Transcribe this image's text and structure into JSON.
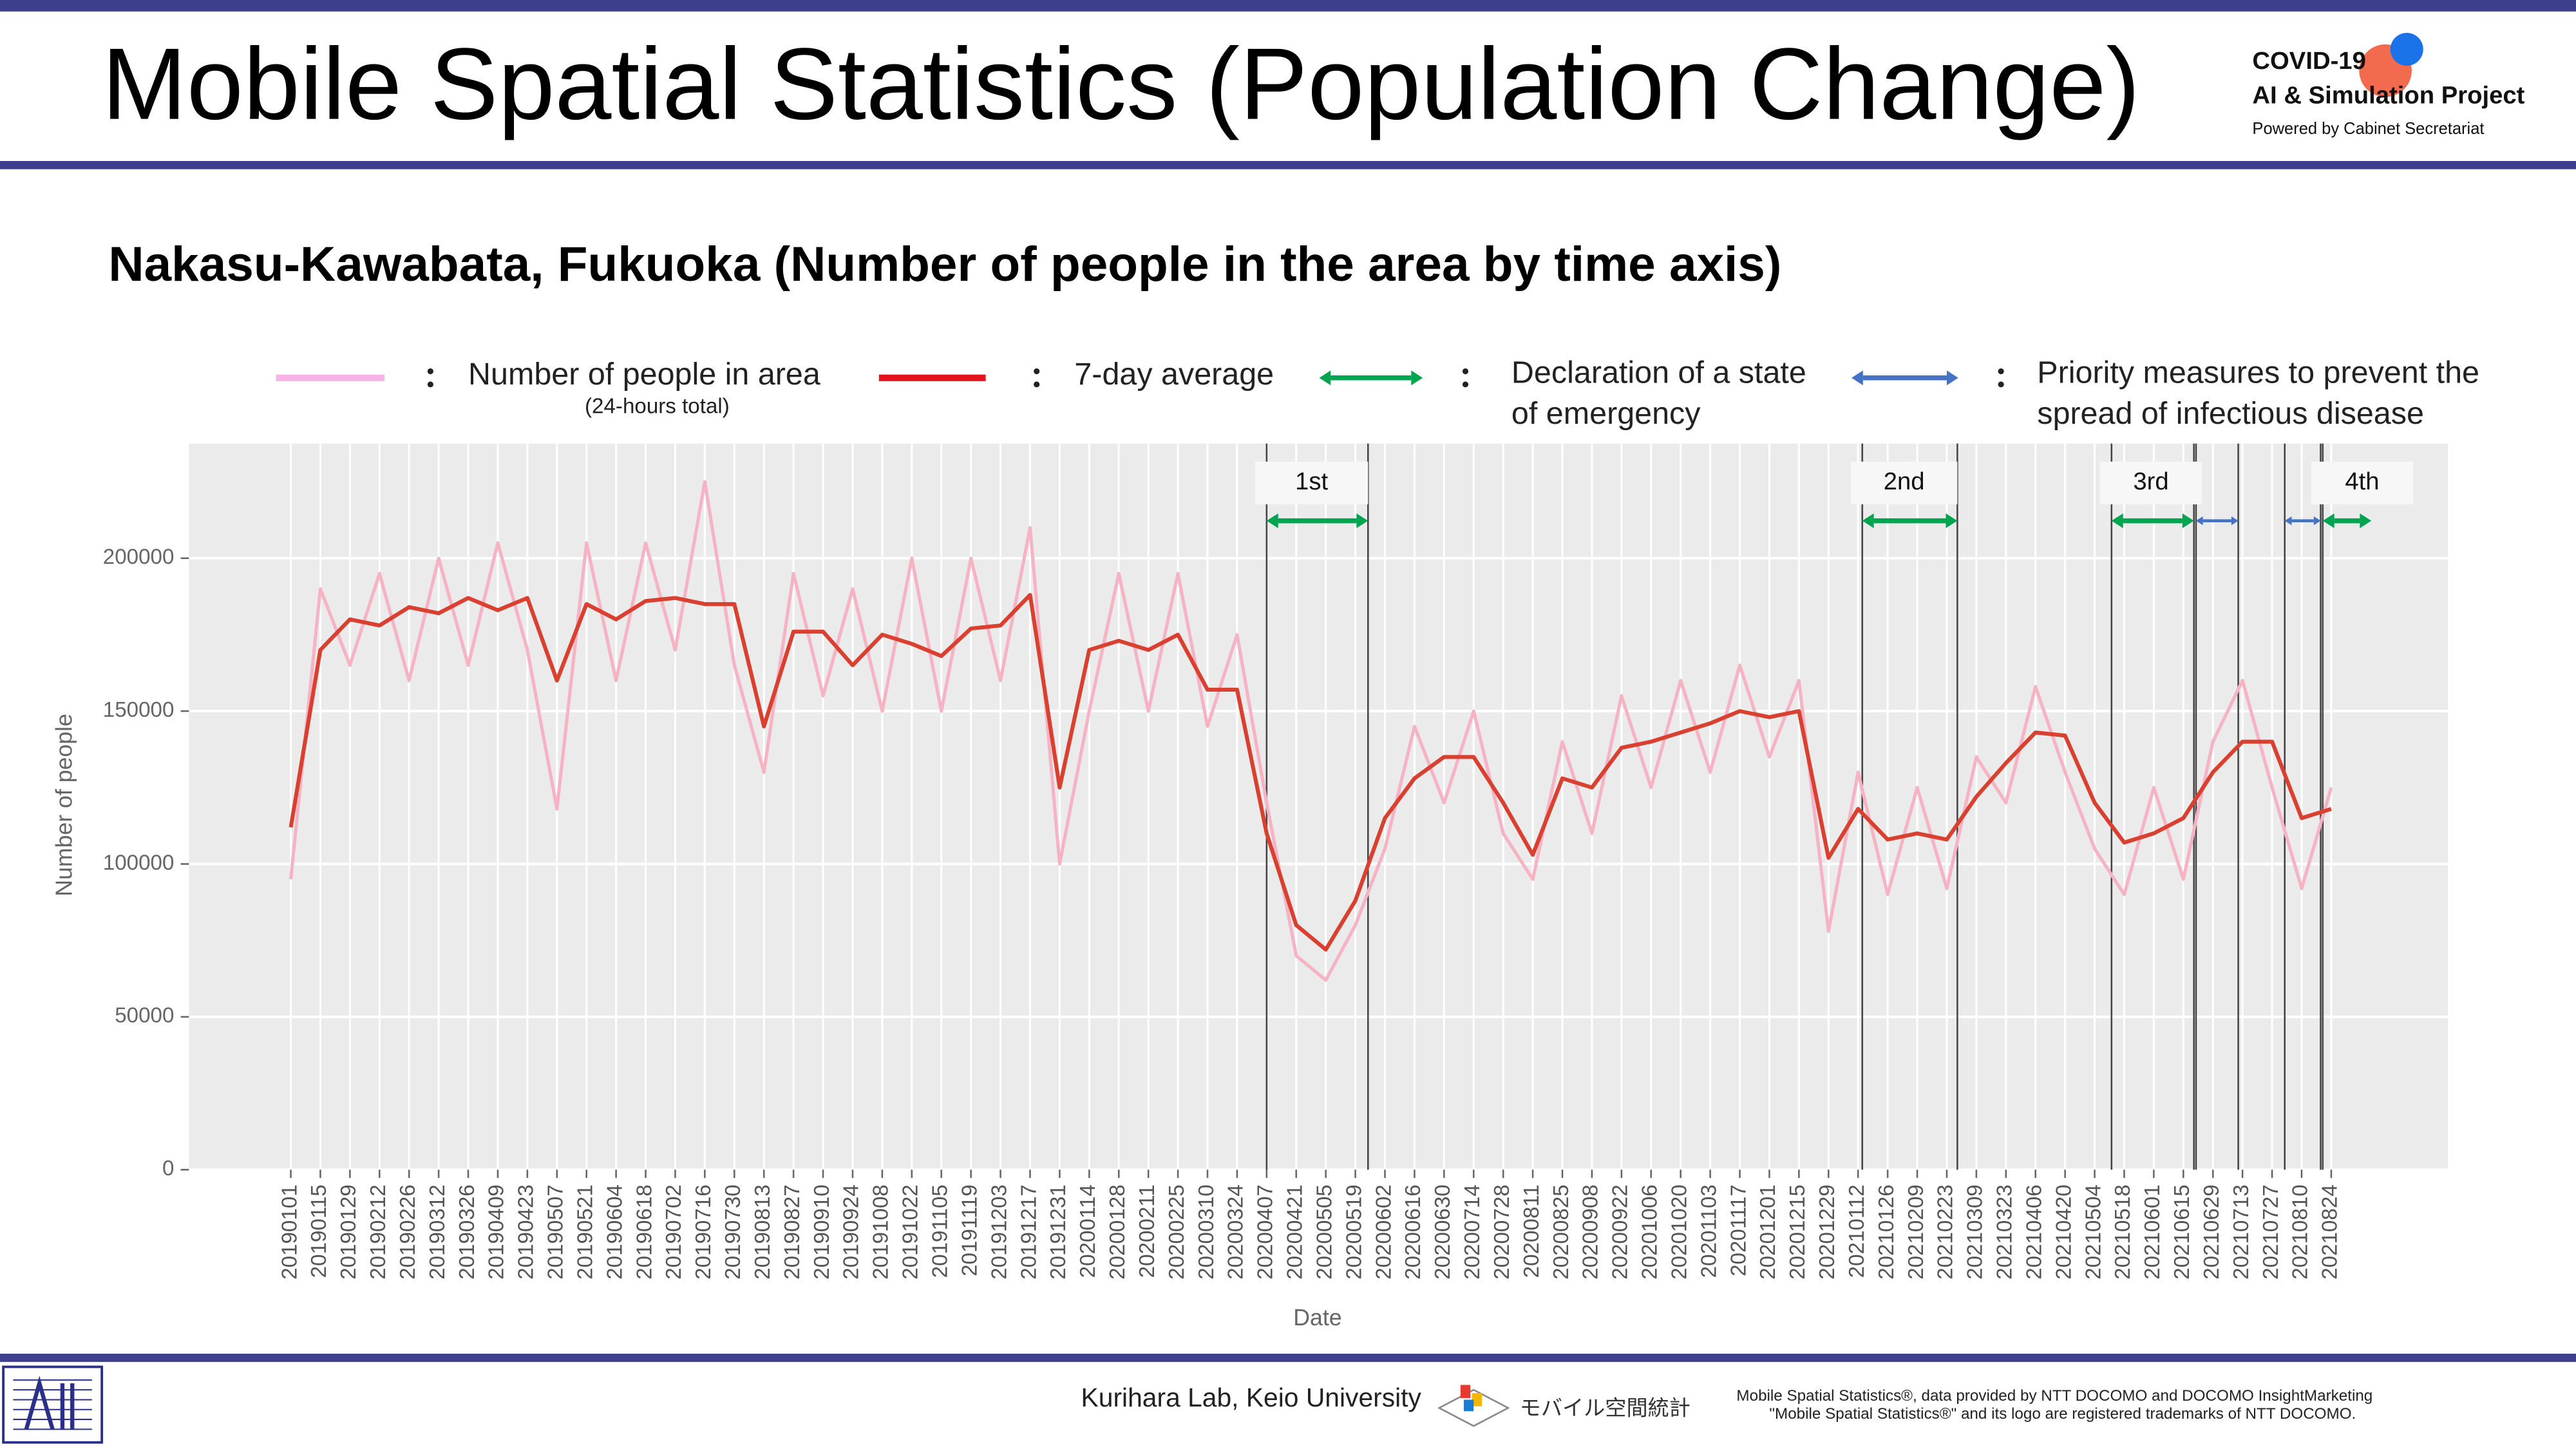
{
  "header": {
    "title": "Mobile Spatial Statistics (Population Change)",
    "logo_line1": "COVID-19",
    "logo_line2": "AI & Simulation Project",
    "logo_line3": "Powered by Cabinet Secretariat"
  },
  "subtitle": "Nakasu-Kawabata, Fukuoka (Number of people in the area by time axis)",
  "chart_data": {
    "type": "line",
    "xlabel": "Date",
    "ylabel": "Number of people",
    "ylim": [
      0,
      237500
    ],
    "yticks": [
      0,
      50000,
      100000,
      150000,
      200000
    ],
    "grid": true,
    "categories": [
      "20190101",
      "20190115",
      "20190129",
      "20190212",
      "20190226",
      "20190312",
      "20190326",
      "20190409",
      "20190423",
      "20190507",
      "20190521",
      "20190604",
      "20190618",
      "20190702",
      "20190716",
      "20190730",
      "20190813",
      "20190827",
      "20190910",
      "20190924",
      "20191008",
      "20191022",
      "20191105",
      "20191119",
      "20191203",
      "20191217",
      "20191231",
      "20200114",
      "20200128",
      "20200211",
      "20200225",
      "20200310",
      "20200324",
      "20200407",
      "20200421",
      "20200505",
      "20200519",
      "20200602",
      "20200616",
      "20200630",
      "20200714",
      "20200728",
      "20200811",
      "20200825",
      "20200908",
      "20200922",
      "20201006",
      "20201020",
      "20201103",
      "20201117",
      "20201201",
      "20201215",
      "20201229",
      "20210112",
      "20210126",
      "20210209",
      "20210223",
      "20210309",
      "20210323",
      "20210406",
      "20210420",
      "20210504",
      "20210518",
      "20210601",
      "20210615",
      "20210629",
      "20210713",
      "20210727",
      "20210810",
      "20210824"
    ],
    "series": [
      {
        "name": "Number of people in area",
        "note": "(24-hours total)",
        "color": "#f5b3c3",
        "legend_color": "#f7b3e8",
        "values": [
          95000,
          190000,
          165000,
          195000,
          160000,
          200000,
          165000,
          205000,
          170000,
          118000,
          205000,
          160000,
          205000,
          170000,
          225000,
          165000,
          130000,
          195000,
          155000,
          190000,
          150000,
          200000,
          150000,
          200000,
          160000,
          210000,
          100000,
          150000,
          195000,
          150000,
          195000,
          145000,
          175000,
          120000,
          70000,
          62000,
          80000,
          105000,
          145000,
          120000,
          150000,
          110000,
          95000,
          140000,
          110000,
          155000,
          125000,
          160000,
          130000,
          165000,
          135000,
          160000,
          78000,
          130000,
          90000,
          125000,
          92000,
          135000,
          120000,
          158000,
          130000,
          105000,
          90000,
          125000,
          95000,
          140000,
          160000,
          125000,
          92000,
          125000
        ]
      },
      {
        "name": "7-day average",
        "color": "#d9402f",
        "legend_color": "#e3141c",
        "values": [
          112000,
          170000,
          180000,
          178000,
          184000,
          182000,
          187000,
          183000,
          187000,
          160000,
          185000,
          180000,
          186000,
          187000,
          185000,
          185000,
          145000,
          176000,
          176000,
          165000,
          175000,
          172000,
          168000,
          177000,
          178000,
          188000,
          125000,
          170000,
          173000,
          170000,
          175000,
          157000,
          157000,
          110000,
          80000,
          72000,
          88000,
          115000,
          128000,
          135000,
          135000,
          120000,
          103000,
          128000,
          125000,
          138000,
          140000,
          143000,
          146000,
          150000,
          148000,
          150000,
          102000,
          118000,
          108000,
          110000,
          108000,
          122000,
          133000,
          143000,
          142000,
          120000,
          107000,
          110000,
          115000,
          130000,
          140000,
          140000,
          115000,
          118000
        ]
      }
    ],
    "period_kinds": [
      {
        "key": "emergency",
        "lines": [
          "Declaration of a state",
          "of emergency"
        ],
        "color": "#00a550"
      },
      {
        "key": "priority",
        "lines": [
          "Priority measures to prevent the",
          "spread of infectious disease"
        ],
        "color": "#4472c4"
      }
    ],
    "events": [
      {
        "label": "1st",
        "segments": [
          {
            "kind": "emergency",
            "start": "20200407",
            "end": "20200525"
          }
        ]
      },
      {
        "label": "2nd",
        "segments": [
          {
            "kind": "emergency",
            "start": "20210114",
            "end": "20210228"
          }
        ]
      },
      {
        "label": "3rd",
        "segments": [
          {
            "kind": "emergency",
            "start": "20210512",
            "end": "20210620"
          },
          {
            "kind": "priority",
            "start": "20210621",
            "end": "20210711"
          }
        ]
      },
      {
        "label": "4th",
        "segments": [
          {
            "kind": "priority",
            "start": "20210802",
            "end": "20210819"
          },
          {
            "kind": "emergency",
            "start": "20210820",
            "end": "20210912"
          }
        ]
      }
    ]
  },
  "footer": {
    "lab": "Kurihara Lab, Keio University",
    "brand": "モバイル空間統計",
    "credit1": "Mobile Spatial Statistics®, data provided by NTT DOCOMO and DOCOMO InsightMarketing",
    "credit2": "\"Mobile Spatial Statistics®\" and its logo are registered trademarks of NTT DOCOMO."
  }
}
